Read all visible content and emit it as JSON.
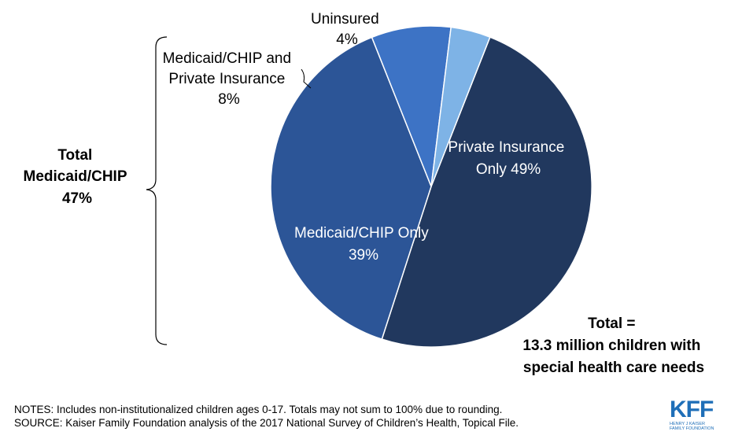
{
  "chart_data": {
    "type": "pie",
    "slices": [
      {
        "label_lines": [
          "Private Insurance",
          "Only 49%"
        ],
        "value": 49,
        "color": "#21385e"
      },
      {
        "label_lines": [
          "Medicaid/CHIP Only",
          "39%"
        ],
        "value": 39,
        "color": "#2c5597"
      },
      {
        "label_lines": [
          "Medicaid/CHIP and",
          "Private Insurance",
          "8%"
        ],
        "value": 8,
        "color": "#3d73c5"
      },
      {
        "label_lines": [
          "Uninsured",
          "4%"
        ],
        "value": 4,
        "color": "#7eb3e6"
      }
    ],
    "bracket_label_lines": [
      "Total",
      "Medicaid/CHIP",
      "47%"
    ],
    "total_lines": [
      "Total =",
      "13.3 million children with",
      "special health care needs"
    ]
  },
  "notes": "NOTES: Includes non-institutionalized  children ages 0-17. Totals may not sum to 100% due to rounding.",
  "source": "SOURCE: Kaiser Family Foundation analysis of the 2017 National Survey of Children’s Health, Topical File.",
  "logo": {
    "text": "KFF",
    "sub_lines": [
      "HENRY J KAISER",
      "FAMILY FOUNDATION"
    ]
  }
}
